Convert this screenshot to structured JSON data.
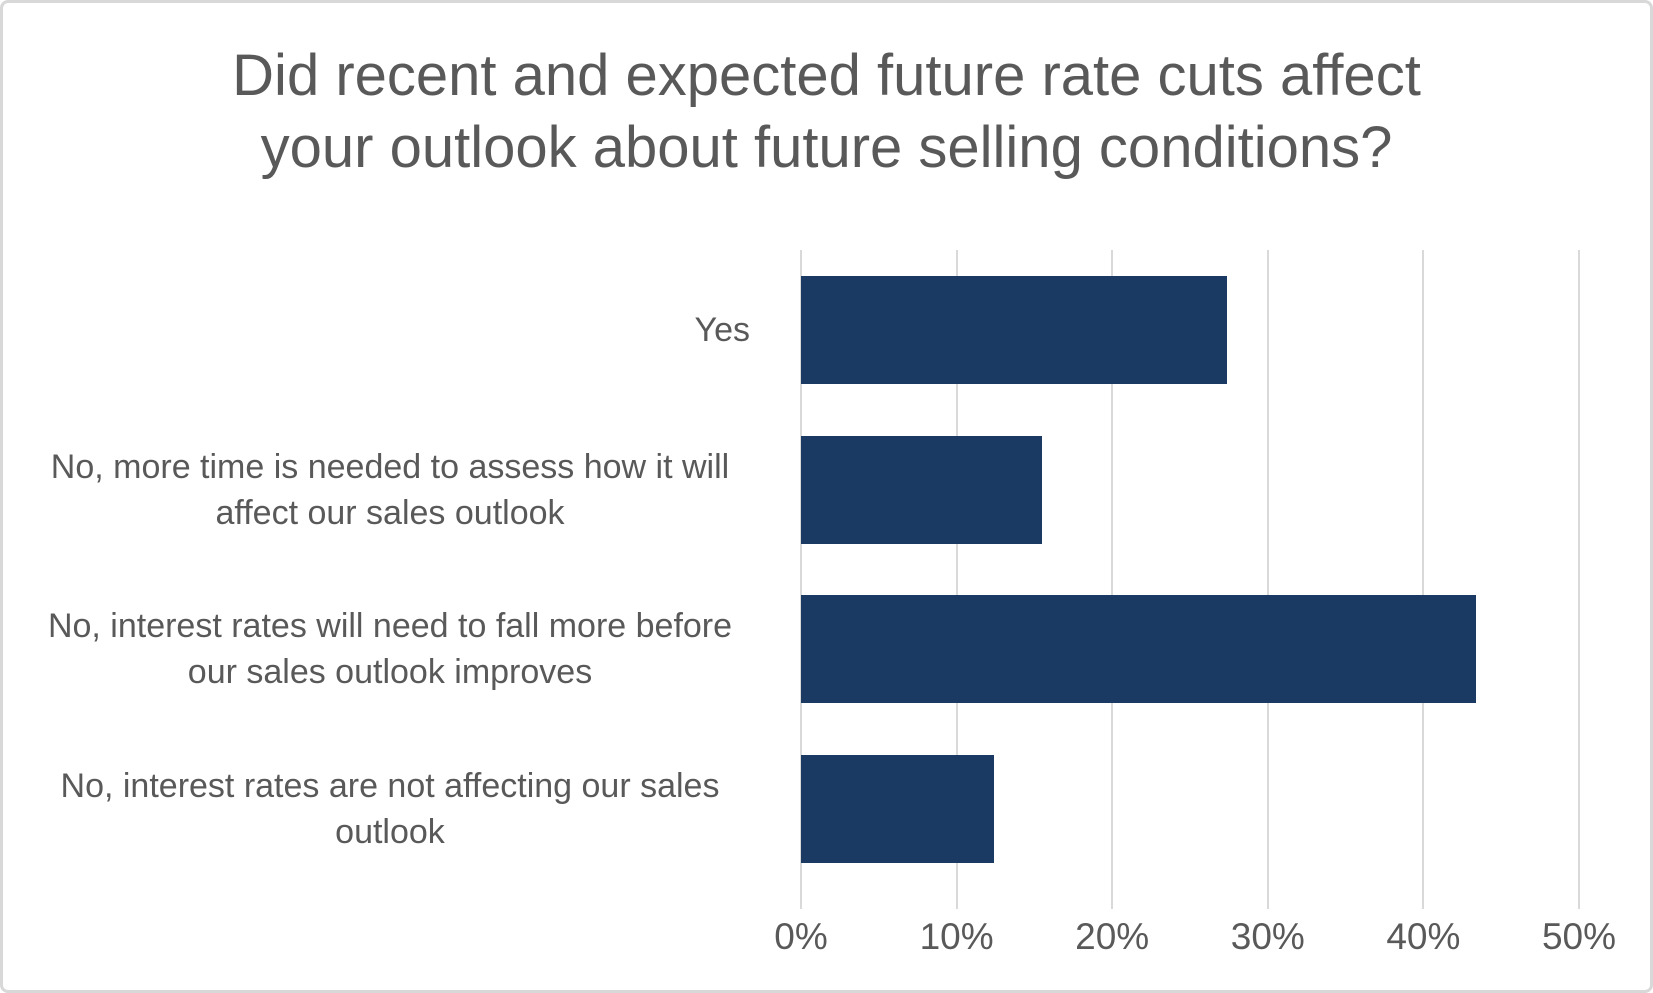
{
  "chart_data": {
    "type": "bar",
    "orientation": "horizontal",
    "title": "Did recent and expected future rate cuts affect your outlook about future selling conditions?",
    "title_lines": [
      "Did recent and expected future rate cuts affect",
      "your outlook about future selling conditions?"
    ],
    "categories": [
      "Yes",
      "No, more time is needed to assess how it will affect our sales outlook",
      "No, interest rates will need to fall more before our sales outlook improves",
      "No, interest rates are not affecting our sales outlook"
    ],
    "values": [
      27.4,
      15.5,
      43.4,
      12.4
    ],
    "unit": "%",
    "xlabel": "",
    "ylabel": "",
    "x_axis": {
      "min": 0,
      "max": 50,
      "tick_values": [
        0,
        10,
        20,
        30,
        40,
        50
      ],
      "tick_labels": [
        "0%",
        "10%",
        "20%",
        "30%",
        "40%",
        "50%"
      ]
    },
    "grid": true,
    "legend": false,
    "colors": {
      "bar": "#1B3A63",
      "gridline": "#D9D9D9",
      "text": "#595959",
      "frame_border": "#D8D8D8",
      "background": "#FFFFFF"
    }
  }
}
